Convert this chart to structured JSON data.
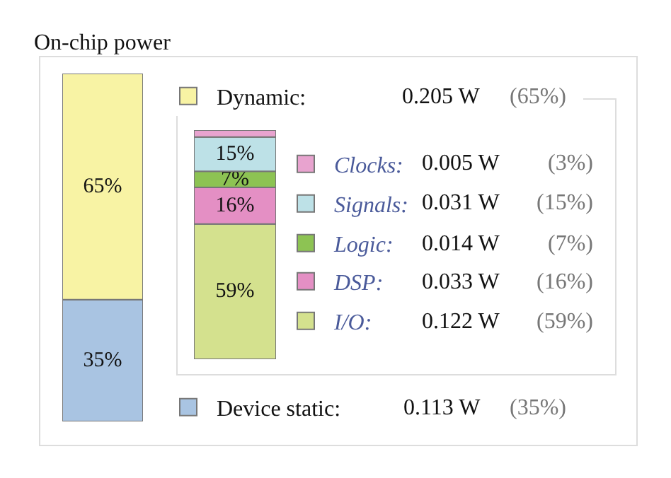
{
  "chart_data": [
    {
      "type": "bar",
      "title": "On-chip power",
      "stacked": true,
      "categories": [
        null
      ],
      "legend": "right",
      "series": [
        {
          "name": "Device static:",
          "color": "#a9c4e2",
          "values": [
            35
          ],
          "value_labels": [
            "35%"
          ]
        },
        {
          "name": "Dynamic:",
          "color": "#f8f3a4",
          "values": [
            65
          ],
          "value_labels": [
            "65%"
          ]
        }
      ],
      "annotations": [
        "0.113 W",
        "(35%)",
        "0.205 W",
        "(65%)"
      ]
    },
    {
      "type": "bar",
      "stacked": true,
      "categories": [
        null
      ],
      "legend": "right",
      "series": [
        {
          "name": "I/O:",
          "color": "#d4e18e",
          "values": [
            59
          ],
          "value_labels": [
            "59%"
          ]
        },
        {
          "name": "DSP:",
          "color": "#e48fc4",
          "values": [
            16
          ],
          "value_labels": [
            "16%"
          ]
        },
        {
          "name": "Logic:",
          "color": "#8dc353",
          "values": [
            7
          ],
          "value_labels": [
            "7%"
          ]
        },
        {
          "name": "Signals:",
          "color": "#bde1e7",
          "values": [
            15
          ],
          "value_labels": [
            "15%"
          ]
        },
        {
          "name": "Clocks:",
          "color": "#e8a3cf",
          "values": [
            3
          ],
          "value_labels": [
            null
          ]
        }
      ],
      "annotations": [
        "0.122 W",
        "(59%)",
        "0.033 W",
        "(16%)",
        "0.014 W",
        "(7%)",
        "0.031 W",
        "(15%)",
        "0.005 W",
        "(3%)"
      ]
    }
  ]
}
